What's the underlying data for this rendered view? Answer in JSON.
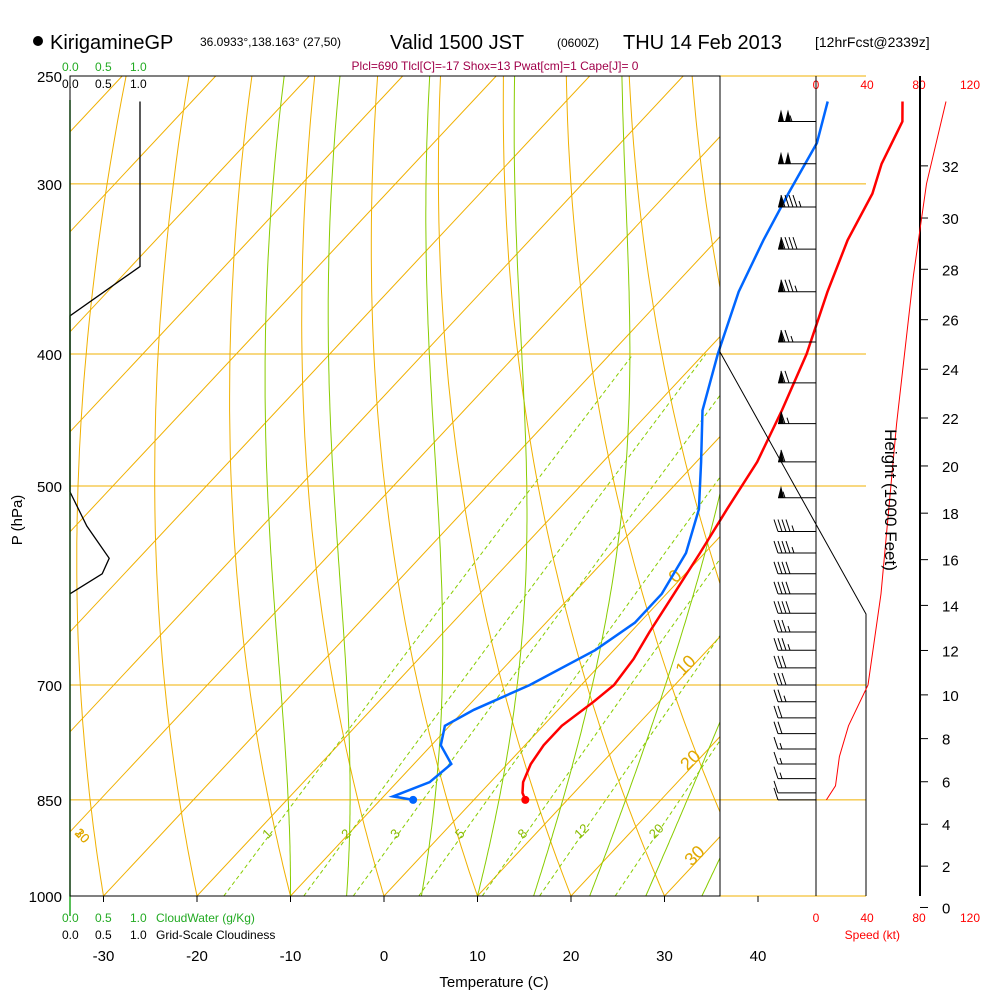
{
  "header": {
    "station": "KirigamineGP",
    "coords": "36.0933°,138.163° (27,50)",
    "valid_main": "Valid 1500 JST",
    "valid_z": "(0600Z)",
    "date": "THU 14 Feb 2013",
    "forecast": "[12hrFcst@2339z]",
    "indices": "Plcl=690 Tlcl[C]=-17 Shox=13 Pwat[cm]=1 Cape[J]= 0"
  },
  "legends": {
    "cloudwater_ticks": [
      "0.0",
      "0.5",
      "1.0"
    ],
    "cloudwater_label": "CloudWater (g/Kg)",
    "cloudiness_ticks": [
      "0.0",
      "0.5",
      "1.0"
    ],
    "cloudiness_label": "Grid-Scale Cloudiness",
    "speed_ticks": [
      "0",
      "40",
      "80",
      "120"
    ],
    "speed_label": "Speed (kt)"
  },
  "colors": {
    "temperature": "#ff0000",
    "dewpoint": "#0066ff",
    "isotherm": "#f0b000",
    "dry_adiabat": "#f0b000",
    "moist_adiabat": "#88cc00",
    "mixing_ratio": "#88cc00",
    "cloud": "#000000",
    "wind_speed": "#ff0000"
  },
  "chart_data": {
    "type": "line",
    "title": "KirigamineGP Valid 1500 JST (0600Z) THU 14 Feb 2013",
    "xlabel": "Temperature (C)",
    "ylabel": "P (hPa)",
    "y2label": "Height (1000 Feet)",
    "x_ticks": [
      -30,
      -20,
      -10,
      0,
      10,
      20,
      30,
      40
    ],
    "y_ticks": [
      250,
      300,
      400,
      500,
      700,
      850,
      1000
    ],
    "height_ticks": [
      0,
      2,
      4,
      6,
      8,
      10,
      12,
      14,
      16,
      18,
      20,
      22,
      24,
      26,
      28,
      30,
      32
    ],
    "isotherm_labels": [
      -30,
      -20,
      -10,
      0,
      10,
      20,
      30
    ],
    "mixing_ratio_labels": [
      "1",
      "2",
      "3",
      "5",
      "8",
      "12",
      "20"
    ],
    "series": [
      {
        "name": "Temperature",
        "points": [
          [
            5.5,
            850
          ],
          [
            4.5,
            840
          ],
          [
            3.5,
            825
          ],
          [
            2.5,
            800
          ],
          [
            2.0,
            775
          ],
          [
            2.0,
            750
          ],
          [
            3.0,
            720
          ],
          [
            3.5,
            700
          ],
          [
            3.0,
            670
          ],
          [
            2.0,
            640
          ],
          [
            0.8,
            600
          ],
          [
            -0.5,
            560
          ],
          [
            -2.0,
            520
          ],
          [
            -3.5,
            480
          ],
          [
            -6.0,
            440
          ],
          [
            -9.0,
            400
          ],
          [
            -13.0,
            360
          ],
          [
            -16.0,
            330
          ],
          [
            -18.0,
            305
          ],
          [
            -20.0,
            290
          ],
          [
            -22.0,
            270
          ],
          [
            -24.0,
            261
          ]
        ]
      },
      {
        "name": "Dewpoint",
        "points": [
          [
            -6.5,
            850
          ],
          [
            -9.0,
            845
          ],
          [
            -6.5,
            825
          ],
          [
            -6.0,
            800
          ],
          [
            -9.0,
            775
          ],
          [
            -10.5,
            750
          ],
          [
            -9.0,
            730
          ],
          [
            -5.5,
            700
          ],
          [
            -2.0,
            660
          ],
          [
            -0.5,
            630
          ],
          [
            -0.5,
            600
          ],
          [
            -2.0,
            560
          ],
          [
            -5.0,
            520
          ],
          [
            -9.5,
            480
          ],
          [
            -14.5,
            440
          ],
          [
            -18.5,
            400
          ],
          [
            -22.5,
            360
          ],
          [
            -25.0,
            330
          ],
          [
            -27.0,
            305
          ],
          [
            -29.0,
            280
          ],
          [
            -32.0,
            261
          ]
        ]
      },
      {
        "name": "Grid-Scale Cloudiness",
        "points": [
          [
            0.5,
            261
          ],
          [
            0.5,
            345
          ],
          [
            0.0,
            375
          ],
          [
            0.0,
            505
          ],
          [
            0.12,
            535
          ],
          [
            0.28,
            565
          ],
          [
            0.23,
            580
          ],
          [
            0.0,
            600
          ]
        ]
      },
      {
        "name": "Wind Speed",
        "points": [
          [
            8,
            850
          ],
          [
            15,
            830
          ],
          [
            18,
            790
          ],
          [
            25,
            750
          ],
          [
            40,
            700
          ],
          [
            50,
            600
          ],
          [
            62,
            450
          ],
          [
            75,
            350
          ],
          [
            85,
            300
          ],
          [
            100,
            261
          ]
        ]
      }
    ],
    "wind_barbs": {
      "pressures": [
        270,
        290,
        312,
        335,
        360,
        392,
        420,
        450,
        480,
        510,
        540,
        560,
        580,
        600,
        620,
        640,
        660,
        680,
        700,
        720,
        740,
        760,
        780,
        800,
        820,
        840,
        850
      ],
      "speeds_kt": [
        105,
        100,
        95,
        90,
        85,
        75,
        70,
        65,
        60,
        55,
        45,
        45,
        40,
        40,
        40,
        35,
        35,
        30,
        30,
        25,
        20,
        20,
        15,
        15,
        15,
        10,
        10
      ]
    }
  }
}
